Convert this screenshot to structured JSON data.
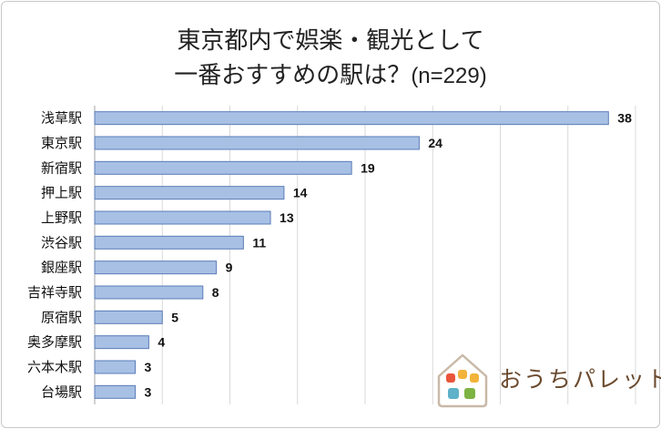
{
  "chart_data": {
    "type": "bar",
    "orientation": "horizontal",
    "title_line1": "東京都内で娯楽・観光として",
    "title_line2": "一番おすすめの駅は？",
    "title_n": "(n=229)",
    "categories": [
      "浅草駅",
      "東京駅",
      "新宿駅",
      "押上駅",
      "上野駅",
      "渋谷駅",
      "銀座駅",
      "吉祥寺駅",
      "原宿駅",
      "奥多摩駅",
      "六本木駅",
      "台場駅"
    ],
    "values": [
      38,
      24,
      19,
      14,
      13,
      11,
      9,
      8,
      5,
      4,
      3,
      3
    ],
    "xlim": [
      0,
      40
    ],
    "xticks": [
      0,
      5,
      10,
      15,
      20,
      25,
      30,
      35,
      40
    ],
    "grid": true,
    "colors": {
      "bar_fill": "#a7c0e4",
      "bar_stroke": "#5a7cb8",
      "grid": "#d9d9d9"
    }
  },
  "brand": {
    "logo_text": "おうちパレット",
    "house_colors": [
      "#e9553b",
      "#f2b33a",
      "#f2b33a",
      "#5fb0c9",
      "#7cb342"
    ]
  }
}
